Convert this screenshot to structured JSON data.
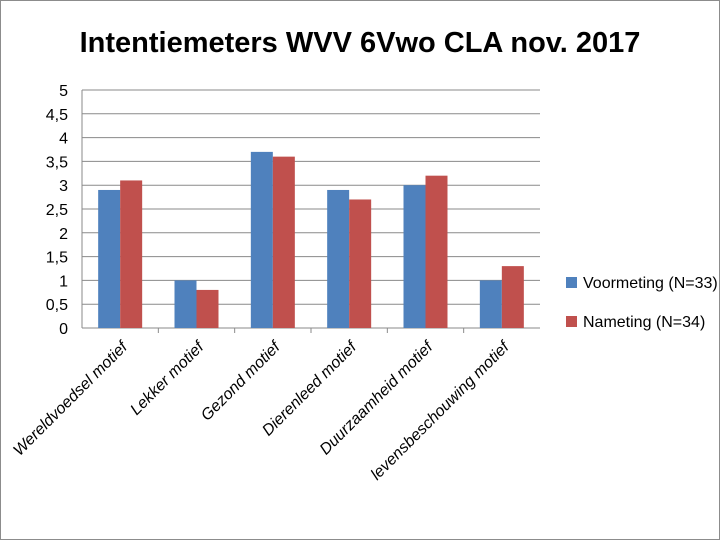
{
  "chart_data": {
    "type": "bar",
    "title": "Intentiemeters WVV 6Vwo CLA nov. 2017",
    "categories": [
      "Wereldvoedsel motief",
      "Lekker motief",
      "Gezond motief",
      "Dierenleed motief",
      "Duurzaamheid motief",
      "levensbeschouwing motief"
    ],
    "series": [
      {
        "name": "Voormeting (N=33)",
        "values": [
          2.9,
          1.0,
          3.7,
          2.9,
          3.0,
          1.0
        ],
        "color": "#4f81bd"
      },
      {
        "name": "Nameting (N=34)",
        "values": [
          3.1,
          0.8,
          3.6,
          2.7,
          3.2,
          1.3
        ],
        "color": "#c0504d"
      }
    ],
    "ylim": [
      0,
      5
    ],
    "yticks": [
      "0",
      "0,5",
      "1",
      "1,5",
      "2",
      "2,5",
      "3",
      "3,5",
      "4",
      "4,5",
      "5"
    ],
    "grid": true,
    "legend_position": "right"
  }
}
